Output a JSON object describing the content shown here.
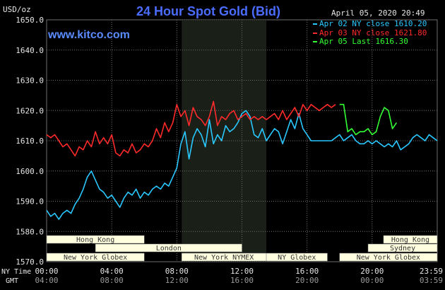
{
  "header": {
    "unit": "USD/oz",
    "title": "24 Hour Spot Gold (Bid)",
    "timestamp": "April 05, 2020 20:49",
    "site": "www.kitco.com"
  },
  "legend": [
    {
      "label": "Apr 02 NY close 1610.20",
      "color": "#29C8FF"
    },
    {
      "label": "Apr 03 NY close 1621.80",
      "color": "#FF2A2A"
    },
    {
      "label": "Apr 05 Last 1616.30",
      "color": "#33FF33"
    }
  ],
  "time_labels": {
    "ny_time": "NY Time",
    "gmt": "GMT",
    "ny_ticks": [
      "00:00",
      "04:00",
      "08:00",
      "12:00",
      "16:00",
      "20:00",
      "23:59"
    ],
    "gmt_ticks": [
      "04:00",
      "08:00",
      "12:00",
      "16:00",
      "20:00",
      "00:00",
      "03:59"
    ]
  },
  "sessions": [
    {
      "label": "Hong Kong",
      "start": 0,
      "end": 6
    },
    {
      "label": "London",
      "start": 3,
      "end": 12
    },
    {
      "label": "New York Globex",
      "start": 0,
      "end": 6
    },
    {
      "label": "New York NYMEX",
      "start": 8.3,
      "end": 13.5
    },
    {
      "label": "NY Globex",
      "start": 13.5,
      "end": 17.25
    },
    {
      "label": "Hong Kong",
      "start": 20.7,
      "end": 24
    },
    {
      "label": "Sydney",
      "start": 19.75,
      "end": 24
    },
    {
      "label": "New York Globex",
      "start": 18,
      "end": 24
    }
  ],
  "colors": {
    "background": "#000000",
    "grid": "#6E6E6E",
    "nymex_shade": "#1A1F18",
    "title": "#4A6CFF",
    "series_apr02": "#29C8FF",
    "series_apr03": "#FF2A2A",
    "series_apr05": "#33FF33",
    "session_bar": "#FFFFE0"
  },
  "chart_data": {
    "type": "line",
    "title": "24 Hour Spot Gold (Bid)",
    "ylabel": "USD/oz",
    "ylim": [
      1570,
      1650
    ],
    "yticks": [
      1570.0,
      1580.0,
      1590.0,
      1600.0,
      1610.0,
      1620.0,
      1630.0,
      1640.0,
      1650.0
    ],
    "xlim": [
      0,
      24
    ],
    "grid": true,
    "legend_position": "top-right",
    "series": [
      {
        "name": "Apr 02 NY close 1610.20",
        "x": [
          0,
          0.25,
          0.5,
          0.75,
          1,
          1.25,
          1.5,
          1.75,
          2,
          2.25,
          2.5,
          2.75,
          3,
          3.25,
          3.5,
          3.75,
          4,
          4.25,
          4.5,
          4.75,
          5,
          5.25,
          5.5,
          5.75,
          6,
          6.25,
          6.5,
          6.75,
          7,
          7.25,
          7.5,
          7.75,
          8,
          8.25,
          8.5,
          8.75,
          9,
          9.25,
          9.5,
          9.75,
          10,
          10.25,
          10.5,
          10.75,
          11,
          11.25,
          11.5,
          11.75,
          12,
          12.25,
          12.5,
          12.75,
          13,
          13.25,
          13.5,
          13.75,
          14,
          14.25,
          14.5,
          14.75,
          15,
          15.25,
          15.5,
          15.75,
          16,
          16.25,
          16.5,
          16.75,
          17,
          17.25,
          17.5,
          17.75,
          18,
          18.25,
          18.5,
          18.75,
          19,
          19.25,
          19.5,
          19.75,
          20,
          20.25,
          20.5,
          20.75,
          21,
          21.25,
          21.5,
          21.75,
          22,
          22.25,
          22.5,
          22.75,
          23,
          23.25,
          23.5,
          23.75,
          24
        ],
        "y": [
          1587,
          1585,
          1586,
          1584,
          1586,
          1587,
          1586,
          1589,
          1591,
          1594,
          1598,
          1600,
          1597,
          1594,
          1593,
          1591,
          1592,
          1590,
          1588,
          1591,
          1593,
          1592,
          1594,
          1591,
          1593,
          1592,
          1594,
          1595,
          1594,
          1596,
          1595,
          1598,
          1601,
          1609,
          1613,
          1604,
          1611,
          1614,
          1612,
          1608,
          1617,
          1609,
          1612,
          1610,
          1615,
          1613,
          1614,
          1616,
          1619,
          1620,
          1618,
          1612,
          1611,
          1614,
          1610,
          1612,
          1614,
          1613,
          1609,
          1613,
          1617,
          1614,
          1619,
          1614,
          1612,
          1610,
          1610,
          1610,
          1610,
          1610,
          1610,
          1611,
          1612,
          1610,
          1611,
          1612,
          1610,
          1609,
          1609,
          1610,
          1609,
          1610,
          1609,
          1608,
          1609,
          1608,
          1610,
          1607,
          1608,
          1609,
          1611,
          1612,
          1611,
          1610,
          1612,
          1611,
          1610
        ]
      },
      {
        "name": "Apr 03 NY close 1621.80",
        "x": [
          0,
          0.25,
          0.5,
          0.75,
          1,
          1.25,
          1.5,
          1.75,
          2,
          2.25,
          2.5,
          2.75,
          3,
          3.25,
          3.5,
          3.75,
          4,
          4.25,
          4.5,
          4.75,
          5,
          5.25,
          5.5,
          5.75,
          6,
          6.25,
          6.5,
          6.75,
          7,
          7.25,
          7.5,
          7.75,
          8,
          8.25,
          8.5,
          8.75,
          9,
          9.25,
          9.5,
          9.75,
          10,
          10.25,
          10.5,
          10.75,
          11,
          11.25,
          11.5,
          11.75,
          12,
          12.25,
          12.5,
          12.75,
          13,
          13.25,
          13.5,
          13.75,
          14,
          14.25,
          14.5,
          14.75,
          15,
          15.25,
          15.5,
          15.75,
          16,
          16.25,
          16.5,
          16.75,
          17,
          17.25,
          17.5,
          17.75
        ],
        "y": [
          1612,
          1611,
          1612,
          1610,
          1608,
          1609,
          1607,
          1605,
          1608,
          1607,
          1610,
          1608,
          1613,
          1609,
          1611,
          1609,
          1612,
          1606,
          1605,
          1607,
          1606,
          1609,
          1606,
          1607,
          1609,
          1608,
          1610,
          1614,
          1611,
          1616,
          1613,
          1616,
          1622,
          1618,
          1620,
          1615,
          1621,
          1618,
          1617,
          1615,
          1618,
          1623,
          1615,
          1618,
          1617,
          1619,
          1620,
          1617,
          1618,
          1619,
          1617,
          1618,
          1617,
          1618,
          1617,
          1618,
          1619,
          1617,
          1620,
          1617,
          1619,
          1621,
          1618,
          1622,
          1620,
          1622,
          1621,
          1620,
          1621,
          1622,
          1621,
          1622
        ]
      },
      {
        "name": "Apr 05 Last 1616.30",
        "x": [
          18,
          18.25,
          18.5,
          18.75,
          19,
          19.25,
          19.5,
          19.75,
          20,
          20.25,
          20.5,
          20.75,
          21,
          21.25,
          21.5
        ],
        "y": [
          1622,
          1622,
          1613,
          1614,
          1612,
          1613,
          1613,
          1614,
          1612,
          1613,
          1618,
          1621,
          1620,
          1614,
          1616
        ]
      }
    ]
  }
}
